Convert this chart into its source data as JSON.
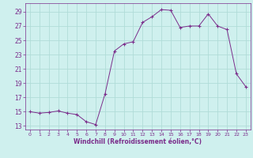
{
  "x": [
    0,
    1,
    2,
    3,
    4,
    5,
    6,
    7,
    8,
    9,
    10,
    11,
    12,
    13,
    14,
    15,
    16,
    17,
    18,
    19,
    20,
    21,
    22,
    23
  ],
  "y": [
    15.0,
    14.8,
    14.9,
    15.1,
    14.8,
    14.6,
    13.6,
    13.2,
    17.5,
    23.5,
    24.5,
    24.8,
    27.5,
    28.3,
    29.3,
    29.2,
    26.8,
    27.0,
    27.0,
    28.7,
    27.0,
    26.5,
    20.3,
    18.5
  ],
  "title": "",
  "xlabel": "Windchill (Refroidissement éolien,°C)",
  "ylabel": "",
  "line_color": "#7b2d8b",
  "marker_color": "#7b2d8b",
  "bg_color": "#cff0ee",
  "grid_color": "#b0dcd8",
  "xlim": [
    -0.5,
    23.5
  ],
  "ylim": [
    12.5,
    30.2
  ],
  "yticks": [
    13,
    15,
    17,
    19,
    21,
    23,
    25,
    27,
    29
  ],
  "xticks": [
    0,
    1,
    2,
    3,
    4,
    5,
    6,
    7,
    8,
    9,
    10,
    11,
    12,
    13,
    14,
    15,
    16,
    17,
    18,
    19,
    20,
    21,
    22,
    23
  ],
  "tick_color": "#7b2d8b",
  "label_color": "#7b2d8b",
  "font_size_ticks": 5,
  "font_size_xlabel": 5.5
}
